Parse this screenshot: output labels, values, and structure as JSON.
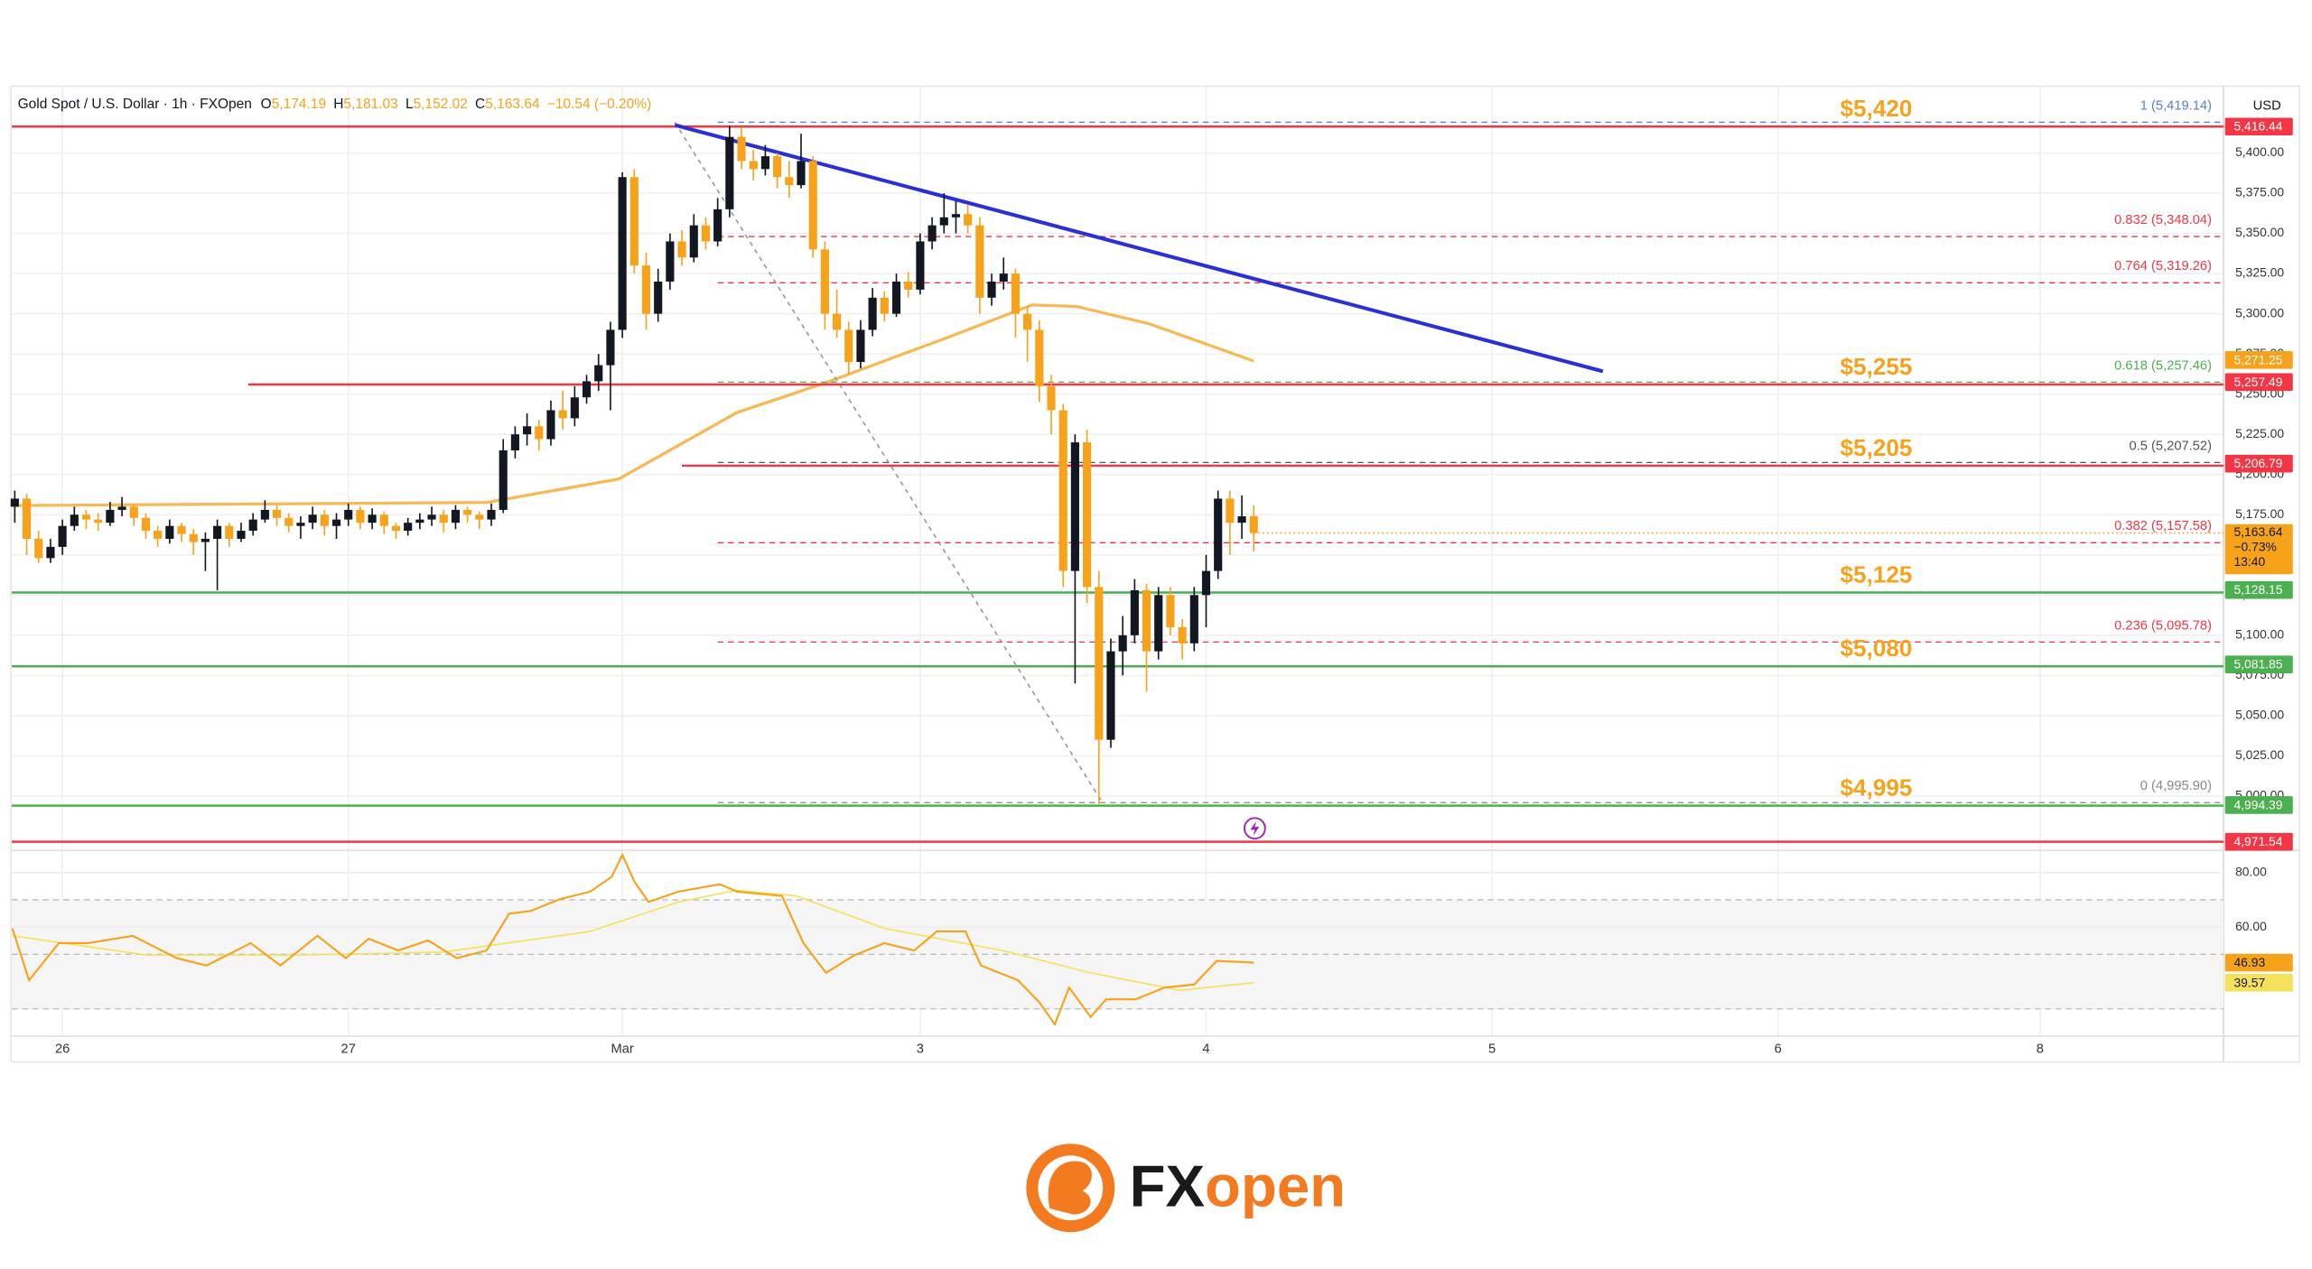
{
  "chart_data": {
    "type": "candlestick",
    "header": {
      "symbol": "Gold Spot / U.S. Dollar · 1h · FXOpen",
      "fields": [
        {
          "key": "O",
          "value": "5,174.19"
        },
        {
          "key": "H",
          "value": "5,181.03"
        },
        {
          "key": "L",
          "value": "5,152.02"
        },
        {
          "key": "C",
          "value": "5,163.64"
        }
      ],
      "change": "−10.54 (−0.20%)"
    },
    "currency": "USD",
    "xlim": [
      -0.25,
      185.4
    ],
    "xticks": [
      {
        "value": 4,
        "label": "26"
      },
      {
        "value": 28,
        "label": "27"
      },
      {
        "value": 51,
        "label": "Mar"
      },
      {
        "value": 76,
        "label": "3"
      },
      {
        "value": 100,
        "label": "4"
      },
      {
        "value": 124,
        "label": "5"
      },
      {
        "value": 148,
        "label": "6"
      },
      {
        "value": 170,
        "label": "8"
      }
    ],
    "ylim": [
      4968,
      5442
    ],
    "yticks": [
      {
        "value": 5400,
        "label": "5,400.00"
      },
      {
        "value": 5375,
        "label": "5,375.00"
      },
      {
        "value": 5350,
        "label": "5,350.00"
      },
      {
        "value": 5325,
        "label": "5,325.00"
      },
      {
        "value": 5300,
        "label": "5,300.00"
      },
      {
        "value": 5275,
        "label": "5,275.00"
      },
      {
        "value": 5250,
        "label": "5,250.00"
      },
      {
        "value": 5225,
        "label": "5,225.00"
      },
      {
        "value": 5200,
        "label": "5,200.00"
      },
      {
        "value": 5175,
        "label": "5,175.00"
      },
      {
        "value": 5150,
        "label": "5,150.00"
      },
      {
        "value": 5125,
        "label": "5,125.00"
      },
      {
        "value": 5100,
        "label": "5,100.00"
      },
      {
        "value": 5075,
        "label": "5,075.00"
      },
      {
        "value": 5050,
        "label": "5,050.00"
      },
      {
        "value": 5025,
        "label": "5,025.00"
      },
      {
        "value": 5000,
        "label": "5,000.00"
      }
    ],
    "grid": true,
    "up_color": "#131722",
    "down_color": "#f7a21b",
    "x": [
      0,
      1,
      2,
      3,
      4,
      5,
      6,
      7,
      8,
      9,
      10,
      11,
      12,
      13,
      14,
      15,
      16,
      17,
      18,
      19,
      20,
      21,
      22,
      23,
      24,
      25,
      26,
      27,
      28,
      29,
      30,
      31,
      32,
      33,
      34,
      35,
      36,
      37,
      38,
      39,
      40,
      41,
      42,
      43,
      44,
      45,
      46,
      47,
      48,
      49,
      50,
      51,
      52,
      53,
      54,
      55,
      56,
      57,
      58,
      59,
      60,
      61,
      62,
      63,
      64,
      65,
      66,
      67,
      68,
      69,
      70,
      71,
      72,
      73,
      74,
      75,
      76,
      77,
      78,
      79,
      80,
      81,
      82,
      83,
      84,
      85,
      86,
      87,
      88,
      89,
      90,
      91,
      92,
      93,
      94,
      95,
      96,
      97,
      98,
      99,
      100,
      101,
      102,
      103,
      104
    ],
    "ohlc": [
      [
        5180,
        5190,
        5170,
        5185
      ],
      [
        5185,
        5188,
        5150,
        5160
      ],
      [
        5160,
        5165,
        5145,
        5148
      ],
      [
        5148,
        5160,
        5145,
        5155
      ],
      [
        5155,
        5172,
        5150,
        5168
      ],
      [
        5168,
        5180,
        5165,
        5175
      ],
      [
        5175,
        5178,
        5166,
        5172
      ],
      [
        5172,
        5176,
        5165,
        5170
      ],
      [
        5170,
        5183,
        5168,
        5178
      ],
      [
        5178,
        5186,
        5174,
        5180
      ],
      [
        5180,
        5182,
        5168,
        5173
      ],
      [
        5173,
        5176,
        5160,
        5165
      ],
      [
        5165,
        5168,
        5155,
        5160
      ],
      [
        5160,
        5172,
        5157,
        5168
      ],
      [
        5168,
        5170,
        5158,
        5163
      ],
      [
        5163,
        5166,
        5150,
        5158
      ],
      [
        5158,
        5164,
        5140,
        5160
      ],
      [
        5160,
        5172,
        5128,
        5168
      ],
      [
        5168,
        5170,
        5155,
        5160
      ],
      [
        5160,
        5170,
        5158,
        5165
      ],
      [
        5165,
        5176,
        5162,
        5172
      ],
      [
        5172,
        5184,
        5170,
        5178
      ],
      [
        5178,
        5181,
        5168,
        5173
      ],
      [
        5173,
        5176,
        5164,
        5168
      ],
      [
        5168,
        5174,
        5160,
        5170
      ],
      [
        5170,
        5180,
        5166,
        5175
      ],
      [
        5175,
        5178,
        5162,
        5168
      ],
      [
        5168,
        5176,
        5160,
        5172
      ],
      [
        5172,
        5182,
        5168,
        5178
      ],
      [
        5178,
        5180,
        5166,
        5170
      ],
      [
        5170,
        5179,
        5166,
        5175
      ],
      [
        5175,
        5177,
        5163,
        5168
      ],
      [
        5168,
        5170,
        5160,
        5165
      ],
      [
        5165,
        5173,
        5162,
        5170
      ],
      [
        5170,
        5176,
        5166,
        5172
      ],
      [
        5172,
        5180,
        5168,
        5175
      ],
      [
        5175,
        5178,
        5164,
        5170
      ],
      [
        5170,
        5181,
        5166,
        5178
      ],
      [
        5178,
        5180,
        5170,
        5175
      ],
      [
        5175,
        5177,
        5166,
        5172
      ],
      [
        5172,
        5182,
        5168,
        5178
      ],
      [
        5178,
        5222,
        5176,
        5215
      ],
      [
        5215,
        5230,
        5210,
        5225
      ],
      [
        5225,
        5238,
        5218,
        5230
      ],
      [
        5230,
        5234,
        5215,
        5222
      ],
      [
        5222,
        5246,
        5218,
        5240
      ],
      [
        5240,
        5252,
        5228,
        5235
      ],
      [
        5235,
        5255,
        5230,
        5248
      ],
      [
        5248,
        5262,
        5244,
        5258
      ],
      [
        5258,
        5275,
        5252,
        5268
      ],
      [
        5268,
        5295,
        5240,
        5290
      ],
      [
        5290,
        5388,
        5285,
        5385
      ],
      [
        5385,
        5390,
        5325,
        5330
      ],
      [
        5330,
        5338,
        5290,
        5300
      ],
      [
        5300,
        5328,
        5295,
        5320
      ],
      [
        5320,
        5350,
        5315,
        5345
      ],
      [
        5345,
        5352,
        5330,
        5335
      ],
      [
        5335,
        5362,
        5332,
        5355
      ],
      [
        5355,
        5360,
        5340,
        5345
      ],
      [
        5345,
        5372,
        5342,
        5365
      ],
      [
        5365,
        5417,
        5360,
        5410
      ],
      [
        5410,
        5416,
        5390,
        5395
      ],
      [
        5395,
        5402,
        5383,
        5390
      ],
      [
        5390,
        5405,
        5386,
        5398
      ],
      [
        5398,
        5400,
        5378,
        5385
      ],
      [
        5385,
        5395,
        5372,
        5380
      ],
      [
        5380,
        5412,
        5378,
        5395
      ],
      [
        5395,
        5398,
        5335,
        5340
      ],
      [
        5340,
        5345,
        5290,
        5300
      ],
      [
        5300,
        5315,
        5285,
        5290
      ],
      [
        5290,
        5295,
        5262,
        5270
      ],
      [
        5270,
        5296,
        5266,
        5290
      ],
      [
        5290,
        5316,
        5286,
        5310
      ],
      [
        5310,
        5314,
        5295,
        5300
      ],
      [
        5300,
        5325,
        5298,
        5320
      ],
      [
        5320,
        5326,
        5310,
        5315
      ],
      [
        5315,
        5350,
        5312,
        5345
      ],
      [
        5345,
        5360,
        5340,
        5355
      ],
      [
        5355,
        5375,
        5350,
        5360
      ],
      [
        5360,
        5370,
        5350,
        5362
      ],
      [
        5362,
        5368,
        5350,
        5355
      ],
      [
        5355,
        5360,
        5300,
        5310
      ],
      [
        5310,
        5325,
        5305,
        5320
      ],
      [
        5320,
        5335,
        5315,
        5325
      ],
      [
        5325,
        5328,
        5285,
        5300
      ],
      [
        5300,
        5305,
        5270,
        5290
      ],
      [
        5290,
        5296,
        5245,
        5255
      ],
      [
        5255,
        5262,
        5225,
        5240
      ],
      [
        5240,
        5244,
        5130,
        5140
      ],
      [
        5140,
        5225,
        5070,
        5220
      ],
      [
        5220,
        5228,
        5120,
        5130
      ],
      [
        5130,
        5140,
        4995,
        5035
      ],
      [
        5035,
        5098,
        5030,
        5090
      ],
      [
        5090,
        5112,
        5075,
        5100
      ],
      [
        5100,
        5135,
        5095,
        5128
      ],
      [
        5128,
        5132,
        5065,
        5090
      ],
      [
        5090,
        5130,
        5085,
        5125
      ],
      [
        5125,
        5130,
        5100,
        5105
      ],
      [
        5105,
        5110,
        5085,
        5095
      ],
      [
        5095,
        5130,
        5090,
        5125
      ],
      [
        5125,
        5150,
        5105,
        5140
      ],
      [
        5140,
        5190,
        5135,
        5185
      ],
      [
        5185,
        5190,
        5150,
        5170
      ],
      [
        5170,
        5187,
        5160,
        5174
      ],
      [
        5174.19,
        5181.03,
        5152.02,
        5163.64
      ]
    ],
    "moving_average": {
      "color": "#f7b955",
      "x": [
        -0.2,
        39.6,
        50.7,
        60.6,
        68,
        78,
        85.4,
        89.1,
        95.3,
        104
      ],
      "values": [
        5180.7,
        5182.6,
        5197.2,
        5238.5,
        5256.9,
        5284.4,
        5305.5,
        5304.6,
        5293.6,
        5270.6
      ]
    },
    "trendline": {
      "color": "#2a2fd6",
      "x": [
        55.4,
        133.3
      ],
      "values": [
        5417.4,
        5264.2
      ]
    },
    "levels": [
      {
        "label": "$5,420",
        "value": 5416.44,
        "color": "#f23645",
        "x_start": -0.25
      },
      {
        "label": "$5,255",
        "value": 5256,
        "color": "#f23645",
        "x_start": 19.6
      },
      {
        "label": "$5,205",
        "value": 5205.5,
        "color": "#f23645",
        "x_start": 56
      },
      {
        "label": "$5,125",
        "value": 5126.6,
        "color": "#4caf50",
        "x_start": -0.25
      },
      {
        "label": "$5,080",
        "value": 5080.7,
        "color": "#4caf50",
        "x_start": -0.25
      },
      {
        "label": "$4,995",
        "value": 4994,
        "color": "#4caf50",
        "x_start": -0.25
      }
    ],
    "support_line": {
      "value": 4971.54,
      "color": "#f23645"
    },
    "level_label_color": "#f7a21b",
    "fib": {
      "x": [
        55.4,
        91.3
      ],
      "x_start": 59,
      "levels": [
        {
          "label": "1 (5,419.14)",
          "value": 5419.14,
          "color": "#5b7fd6"
        },
        {
          "label": "0.832 (5,348.04)",
          "value": 5348.04,
          "color": "#f23645"
        },
        {
          "label": "0.764 (5,319.26)",
          "value": 5319.26,
          "color": "#f23645"
        },
        {
          "label": "0.618 (5,257.46)",
          "value": 5257.46,
          "color": "#4caf50"
        },
        {
          "label": "0.5 (5,207.52)",
          "value": 5207.52,
          "color": "#555555"
        },
        {
          "label": "0.382 (5,157.58)",
          "value": 5157.58,
          "color": "#f23645"
        },
        {
          "label": "0.236 (5,095.78)",
          "value": 5095.78,
          "color": "#f23645"
        },
        {
          "label": "0 (4,995.90)",
          "value": 4995.9,
          "color": "#888888"
        }
      ]
    },
    "tags": [
      {
        "value": 5416.44,
        "label": "5,416.44",
        "color": "#f23645"
      },
      {
        "value": 5271.25,
        "label": "5,271.25",
        "color": "#f7a21b"
      },
      {
        "value": 5257.49,
        "label": "5,257.49",
        "color": "#f23645"
      },
      {
        "value": 5206.79,
        "label": "5,206.79",
        "color": "#f23645"
      },
      {
        "value": 5128.15,
        "label": "5,128.15",
        "color": "#4caf50"
      },
      {
        "value": 5081.85,
        "label": "5,081.85",
        "color": "#4caf50"
      },
      {
        "value": 4994.39,
        "label": "4,994.39",
        "color": "#4caf50"
      },
      {
        "value": 4971.54,
        "label": "4,971.54",
        "color": "#f23645"
      }
    ],
    "current": {
      "value": 5163.64,
      "label": "5,163.64",
      "change": "−0.73%",
      "countdown": "13:40",
      "color": "#f7a21b"
    },
    "rsi": {
      "ylim": [
        21.6,
        86.5
      ],
      "yticks": [
        {
          "value": 80,
          "label": "80.00"
        },
        {
          "value": 60,
          "label": "60.00"
        }
      ],
      "bands": [
        70,
        50,
        30
      ],
      "series": [
        {
          "color": "#f7a21b",
          "x": [
            -0.2,
            1.2,
            3.7,
            6.2,
            9.9,
            13.6,
            16.1,
            19.8,
            22.3,
            25.4,
            27.8,
            29.7,
            32.2,
            34.7,
            37.1,
            39.6,
            41.5,
            43.3,
            45.8,
            48.3,
            50.1,
            51,
            52,
            53.2,
            55.7,
            59.2,
            60.6,
            64.4,
            66.2,
            68.1,
            70.5,
            73,
            75.5,
            77.4,
            79.8,
            81.1,
            84.2,
            86,
            87.3,
            88.5,
            90.3,
            91.6,
            94.1,
            96.5,
            99,
            100.9,
            104
          ],
          "values": [
            59.5,
            40.5,
            54.1,
            54.1,
            56.8,
            48.6,
            45.9,
            54.1,
            45.9,
            56.8,
            48.6,
            55.7,
            51.4,
            55.1,
            48.6,
            51.4,
            64.9,
            65.9,
            70.3,
            73.0,
            78.4,
            86.5,
            76.8,
            69.2,
            73.0,
            75.7,
            73.0,
            71.4,
            54.1,
            43.2,
            49.7,
            54.1,
            51.4,
            58.4,
            58.4,
            45.9,
            40.5,
            32.4,
            24.3,
            37.8,
            27.0,
            33.5,
            33.5,
            37.8,
            38.9,
            47.6,
            46.93
          ],
          "tag": {
            "value": 46.93,
            "label": "46.93"
          }
        },
        {
          "color": "#f5e15a",
          "x": [
            -0.2,
            11.1,
            23.5,
            35.9,
            48.3,
            55.7,
            60.6,
            65.6,
            73,
            82.9,
            90.3,
            97.8,
            104
          ],
          "values": [
            56.8,
            49.7,
            49.7,
            50.8,
            58.4,
            69.2,
            73.5,
            71.4,
            59.5,
            51.4,
            43.2,
            36.8,
            39.57
          ],
          "tag": {
            "value": 39.57,
            "label": "39.57"
          }
        }
      ]
    }
  },
  "logo": {
    "parts": [
      "FX",
      "open"
    ]
  }
}
